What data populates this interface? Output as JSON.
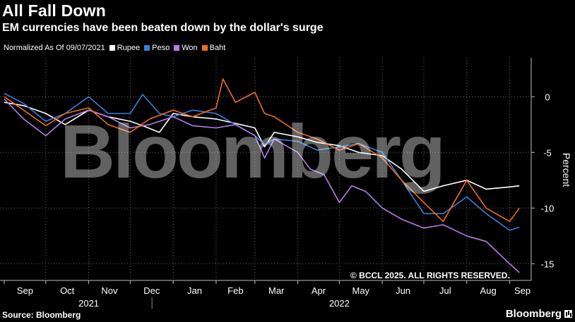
{
  "header": {
    "title": "All Fall Down",
    "subtitle": "EM currencies have been beaten down by the dollar's surge"
  },
  "legend": {
    "note": "Normalized As Of 09/07/2021",
    "items": [
      {
        "label": "Rupee",
        "color": "#ffffff"
      },
      {
        "label": "Peso",
        "color": "#3b7ddd"
      },
      {
        "label": "Won",
        "color": "#b67cf0"
      },
      {
        "label": "Baht",
        "color": "#f26b1d"
      }
    ]
  },
  "footer": {
    "source": "Source: Bloomberg",
    "brand": "Bloomberg"
  },
  "overlays": {
    "watermark": "Bloomberg",
    "copyright": "© BCCL 2025. ALL RIGHTS RESERVED."
  },
  "chart_data": {
    "type": "line",
    "ylabel": "Percent",
    "ylim": [
      -16.5,
      3.5
    ],
    "yticks": [
      0,
      -5,
      -10,
      -15
    ],
    "xlim": [
      "2021-09-01",
      "2022-09-14"
    ],
    "grid": true,
    "legend_placement": "top-left",
    "x_months": [
      {
        "label": "Sep",
        "date": "2021-09-01"
      },
      {
        "label": "Oct",
        "date": "2021-10-01"
      },
      {
        "label": "Nov",
        "date": "2021-11-01"
      },
      {
        "label": "Dec",
        "date": "2021-12-01"
      },
      {
        "label": "Jan",
        "date": "2022-01-01"
      },
      {
        "label": "Feb",
        "date": "2022-02-01"
      },
      {
        "label": "Mar",
        "date": "2022-03-01"
      },
      {
        "label": "Apr",
        "date": "2022-04-01"
      },
      {
        "label": "May",
        "date": "2022-05-01"
      },
      {
        "label": "Jun",
        "date": "2022-06-01"
      },
      {
        "label": "Jul",
        "date": "2022-07-01"
      },
      {
        "label": "Aug",
        "date": "2022-08-01"
      },
      {
        "label": "Sep",
        "date": "2022-09-01"
      }
    ],
    "x_years": [
      {
        "label": "2021",
        "date": "2021-11-01"
      },
      {
        "label": "2022",
        "date": "2022-05-01"
      }
    ],
    "series": [
      {
        "name": "Rupee",
        "color": "#ffffff",
        "points": [
          [
            "2021-09-01",
            -0.5
          ],
          [
            "2021-09-15",
            -0.8
          ],
          [
            "2021-10-01",
            -1.5
          ],
          [
            "2021-10-15",
            -2.5
          ],
          [
            "2021-11-01",
            -1.2
          ],
          [
            "2021-11-15",
            -1.8
          ],
          [
            "2021-12-01",
            -2.2
          ],
          [
            "2021-12-10",
            -2.6
          ],
          [
            "2021-12-22",
            -3.2
          ],
          [
            "2022-01-01",
            -1.5
          ],
          [
            "2022-01-15",
            -1.8
          ],
          [
            "2022-02-01",
            -2.0
          ],
          [
            "2022-02-15",
            -2.4
          ],
          [
            "2022-03-01",
            -2.8
          ],
          [
            "2022-03-08",
            -4.5
          ],
          [
            "2022-03-15",
            -3.2
          ],
          [
            "2022-04-01",
            -3.6
          ],
          [
            "2022-04-15",
            -4.1
          ],
          [
            "2022-05-01",
            -4.4
          ],
          [
            "2022-05-15",
            -5.0
          ],
          [
            "2022-06-01",
            -5.3
          ],
          [
            "2022-06-15",
            -6.5
          ],
          [
            "2022-07-01",
            -8.5
          ],
          [
            "2022-07-15",
            -8.0
          ],
          [
            "2022-08-01",
            -7.5
          ],
          [
            "2022-08-15",
            -8.3
          ],
          [
            "2022-09-01",
            -8.1
          ],
          [
            "2022-09-08",
            -8.0
          ]
        ]
      },
      {
        "name": "Peso",
        "color": "#3b7ddd",
        "points": [
          [
            "2021-09-01",
            0.3
          ],
          [
            "2021-09-15",
            -0.6
          ],
          [
            "2021-10-01",
            -2.2
          ],
          [
            "2021-10-15",
            -1.5
          ],
          [
            "2021-11-01",
            0.0
          ],
          [
            "2021-11-15",
            -1.5
          ],
          [
            "2021-12-01",
            -1.5
          ],
          [
            "2021-12-10",
            0.2
          ],
          [
            "2021-12-22",
            -1.5
          ],
          [
            "2022-01-01",
            -1.8
          ],
          [
            "2022-01-15",
            -1.2
          ],
          [
            "2022-02-01",
            -1.5
          ],
          [
            "2022-02-15",
            -2.5
          ],
          [
            "2022-03-01",
            -3.5
          ],
          [
            "2022-03-08",
            -4.3
          ],
          [
            "2022-03-15",
            -3.8
          ],
          [
            "2022-04-01",
            -4.0
          ],
          [
            "2022-04-15",
            -4.8
          ],
          [
            "2022-05-01",
            -4.5
          ],
          [
            "2022-05-15",
            -4.2
          ],
          [
            "2022-06-01",
            -5.0
          ],
          [
            "2022-06-15",
            -7.5
          ],
          [
            "2022-07-01",
            -10.5
          ],
          [
            "2022-07-15",
            -10.5
          ],
          [
            "2022-08-01",
            -9.0
          ],
          [
            "2022-08-15",
            -10.5
          ],
          [
            "2022-09-01",
            -12.0
          ],
          [
            "2022-09-08",
            -11.7
          ]
        ]
      },
      {
        "name": "Won",
        "color": "#b67cf0",
        "points": [
          [
            "2021-09-01",
            -0.2
          ],
          [
            "2021-09-15",
            -2.0
          ],
          [
            "2021-10-01",
            -3.5
          ],
          [
            "2021-10-15",
            -2.0
          ],
          [
            "2021-11-01",
            -1.2
          ],
          [
            "2021-11-15",
            -1.8
          ],
          [
            "2021-12-01",
            -2.8
          ],
          [
            "2021-12-15",
            -2.5
          ],
          [
            "2022-01-01",
            -1.8
          ],
          [
            "2022-01-15",
            -2.6
          ],
          [
            "2022-02-01",
            -2.8
          ],
          [
            "2022-02-15",
            -2.5
          ],
          [
            "2022-03-01",
            -3.5
          ],
          [
            "2022-03-08",
            -5.5
          ],
          [
            "2022-03-15",
            -3.8
          ],
          [
            "2022-04-01",
            -5.0
          ],
          [
            "2022-04-10",
            -6.5
          ],
          [
            "2022-04-20",
            -7.0
          ],
          [
            "2022-05-01",
            -9.5
          ],
          [
            "2022-05-10",
            -8.0
          ],
          [
            "2022-05-20",
            -8.5
          ],
          [
            "2022-06-01",
            -10.0
          ],
          [
            "2022-06-15",
            -11.0
          ],
          [
            "2022-07-01",
            -11.8
          ],
          [
            "2022-07-15",
            -11.5
          ],
          [
            "2022-08-01",
            -12.5
          ],
          [
            "2022-08-15",
            -13.0
          ],
          [
            "2022-09-01",
            -15.0
          ],
          [
            "2022-09-08",
            -15.8
          ]
        ]
      },
      {
        "name": "Baht",
        "color": "#f26b1d",
        "points": [
          [
            "2021-09-01",
            0.0
          ],
          [
            "2021-09-15",
            -1.2
          ],
          [
            "2021-10-01",
            -2.6
          ],
          [
            "2021-10-15",
            -1.5
          ],
          [
            "2021-11-01",
            -1.0
          ],
          [
            "2021-11-15",
            -2.5
          ],
          [
            "2021-12-01",
            -3.2
          ],
          [
            "2021-12-15",
            -2.0
          ],
          [
            "2022-01-01",
            -1.2
          ],
          [
            "2022-01-15",
            -1.8
          ],
          [
            "2022-02-01",
            -1.0
          ],
          [
            "2022-02-06",
            1.6
          ],
          [
            "2022-02-15",
            -0.5
          ],
          [
            "2022-03-01",
            0.4
          ],
          [
            "2022-03-08",
            -1.5
          ],
          [
            "2022-03-15",
            -1.8
          ],
          [
            "2022-04-01",
            -3.2
          ],
          [
            "2022-04-15",
            -3.8
          ],
          [
            "2022-05-01",
            -4.8
          ],
          [
            "2022-05-15",
            -4.2
          ],
          [
            "2022-06-01",
            -5.5
          ],
          [
            "2022-06-15",
            -7.5
          ],
          [
            "2022-07-01",
            -9.5
          ],
          [
            "2022-07-15",
            -11.2
          ],
          [
            "2022-08-01",
            -7.5
          ],
          [
            "2022-08-15",
            -10.0
          ],
          [
            "2022-09-01",
            -11.2
          ],
          [
            "2022-09-08",
            -10.0
          ]
        ]
      }
    ]
  }
}
